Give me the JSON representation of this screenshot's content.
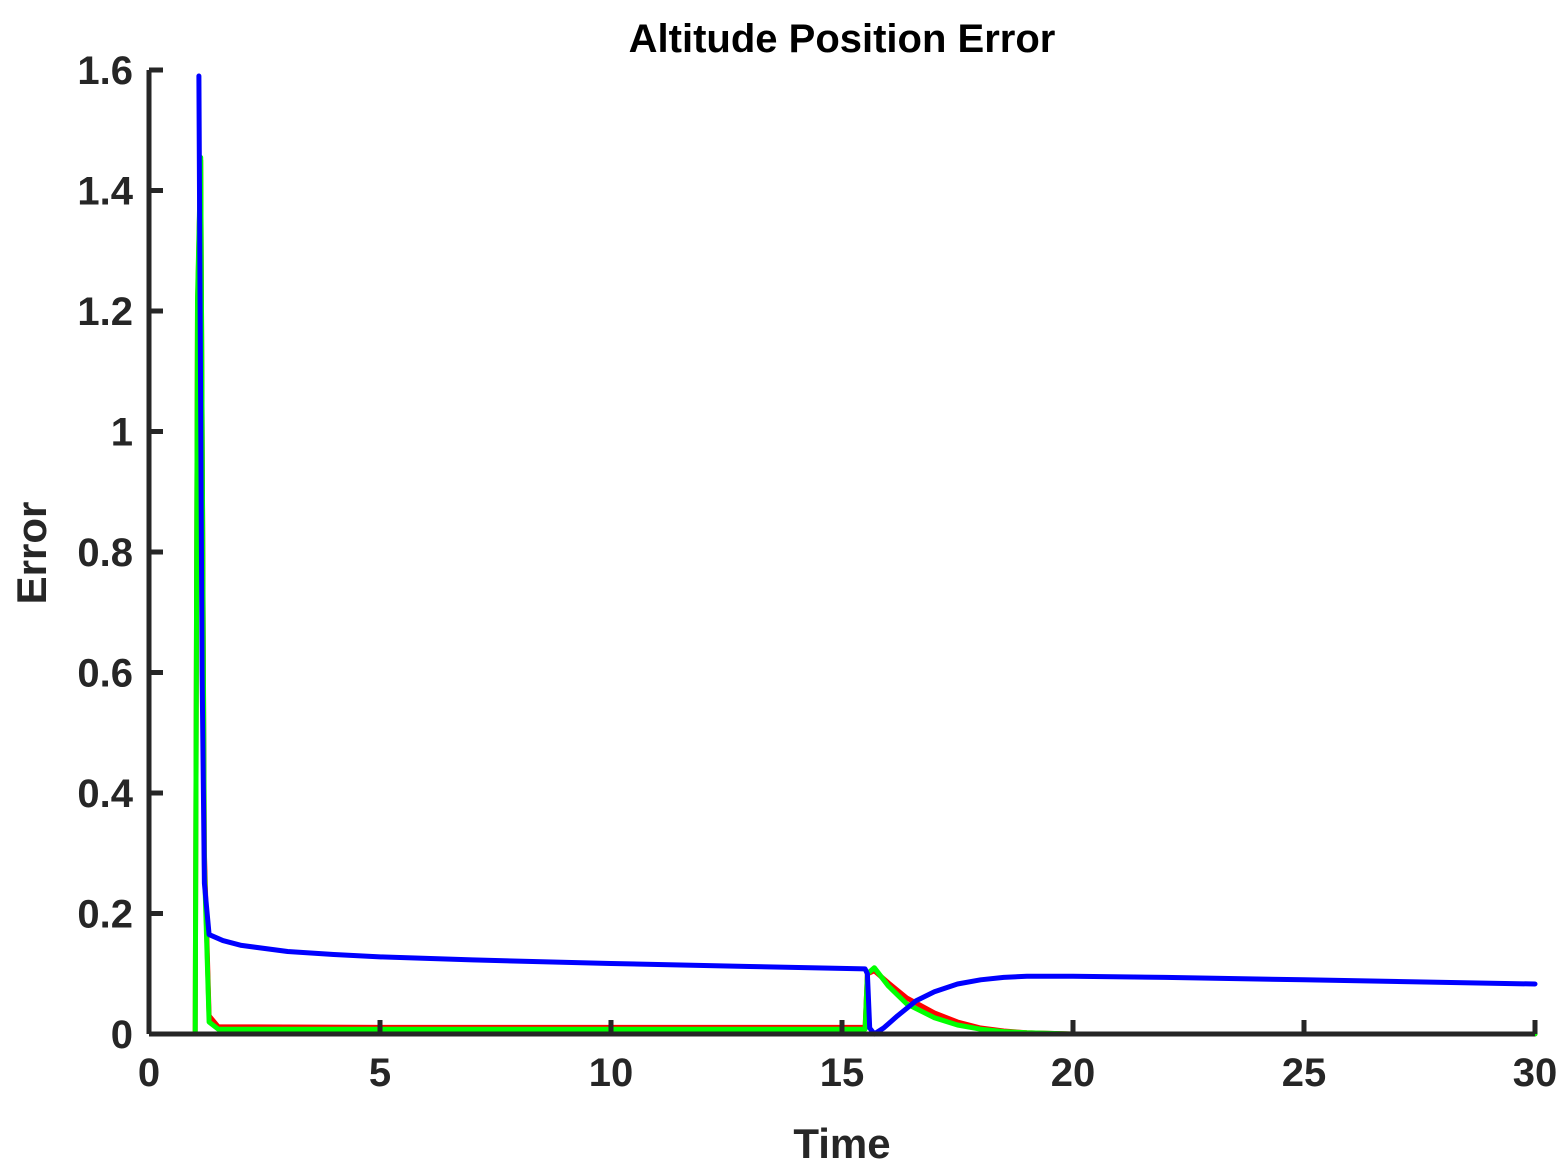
{
  "chart_data": {
    "type": "line",
    "title": "Altitude Position Error",
    "xlabel": "Time",
    "ylabel": "Error",
    "xlim": [
      0,
      30
    ],
    "ylim": [
      0,
      1.6
    ],
    "xticks": [
      "0",
      "5",
      "10",
      "15",
      "20",
      "25",
      "30"
    ],
    "yticks": [
      "0",
      "0.2",
      "0.4",
      "0.6",
      "0.8",
      "1",
      "1.2",
      "1.4",
      "1.6"
    ],
    "grid": false,
    "legend": "none",
    "colors": {
      "axis": "#262626",
      "background": "#ffffff"
    },
    "series": [
      {
        "color": "#ff0000",
        "x": [
          1.0,
          1.05,
          1.12,
          1.2,
          1.3,
          1.5,
          5.0,
          10.0,
          15.0,
          15.5,
          15.55,
          15.7,
          16.0,
          16.4,
          17.0,
          17.5,
          18.0,
          18.5,
          19.0,
          20.0,
          25.0,
          30.0
        ],
        "y": [
          0.0,
          1.2,
          1.45,
          0.3,
          0.03,
          0.012,
          0.011,
          0.011,
          0.011,
          0.011,
          0.1,
          0.105,
          0.085,
          0.06,
          0.035,
          0.02,
          0.01,
          0.005,
          0.002,
          0.0,
          0.0,
          0.0
        ]
      },
      {
        "color": "#00ff00",
        "x": [
          1.0,
          1.05,
          1.12,
          1.2,
          1.3,
          1.5,
          5.0,
          10.0,
          15.0,
          15.5,
          15.55,
          15.7,
          16.0,
          16.4,
          17.0,
          17.5,
          18.0,
          18.5,
          19.0,
          20.0,
          25.0,
          30.0
        ],
        "y": [
          0.0,
          1.22,
          1.455,
          0.28,
          0.02,
          0.008,
          0.008,
          0.008,
          0.008,
          0.008,
          0.1,
          0.11,
          0.08,
          0.05,
          0.027,
          0.015,
          0.008,
          0.004,
          0.002,
          0.0,
          0.0,
          0.0
        ]
      },
      {
        "color": "#0000ff",
        "x": [
          1.08,
          1.1,
          1.15,
          1.2,
          1.3,
          1.6,
          2.0,
          3.0,
          4.0,
          5.0,
          7.0,
          10.0,
          13.0,
          15.5,
          15.55,
          15.6,
          15.7,
          15.9,
          16.2,
          16.6,
          17.0,
          17.5,
          18.0,
          18.5,
          19.0,
          19.5,
          20.0,
          22.0,
          25.0,
          30.0
        ],
        "y": [
          1.59,
          1.3,
          0.6,
          0.25,
          0.165,
          0.155,
          0.147,
          0.137,
          0.132,
          0.128,
          0.123,
          0.117,
          0.112,
          0.108,
          0.1,
          0.01,
          0.0,
          0.01,
          0.03,
          0.055,
          0.07,
          0.083,
          0.09,
          0.094,
          0.096,
          0.096,
          0.096,
          0.094,
          0.09,
          0.083
        ]
      }
    ]
  }
}
